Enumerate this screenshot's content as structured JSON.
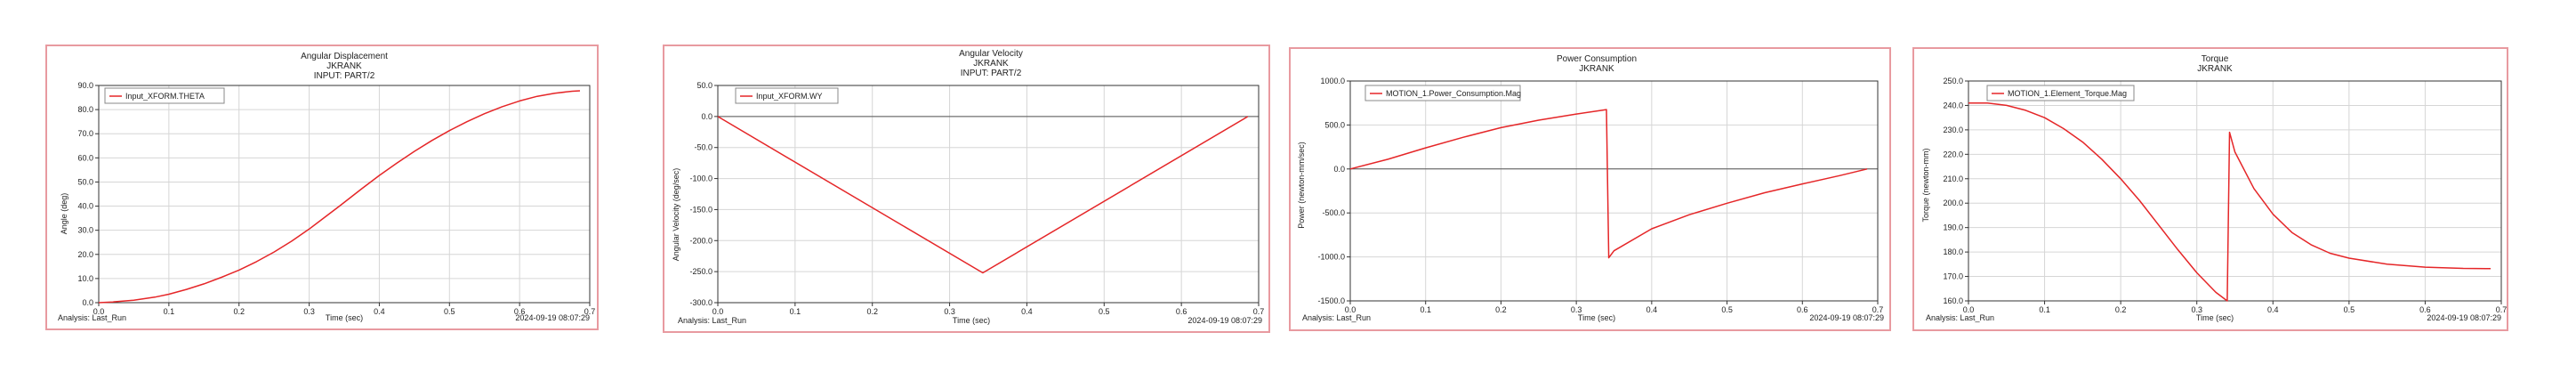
{
  "colors": {
    "series": "#e52628",
    "grid": "#d6d6d6",
    "frame": "#e89aa0",
    "axis": "#333333"
  },
  "charts": [
    {
      "title_lines": [
        "Angular Displacement",
        "JKRANK",
        "INPUT: PART/2"
      ],
      "ylabel": "Angle (deg)",
      "xlabel": "Time (sec)",
      "analysis": "Analysis:  Last_Run",
      "timestamp": "2024-09-19 08:07:29",
      "legend": "Input_XFORM.THETA",
      "xticks": [
        "0.0",
        "0.1",
        "0.2",
        "0.3",
        "0.4",
        "0.5",
        "0.6",
        "0.7"
      ],
      "yticks": [
        "0.0",
        "10.0",
        "20.0",
        "30.0",
        "40.0",
        "50.0",
        "60.0",
        "70.0",
        "80.0",
        "90.0"
      ]
    },
    {
      "title_lines": [
        "Angular Velocity",
        "JKRANK",
        "INPUT: PART/2"
      ],
      "ylabel": "Angular Velocity (deg/sec)",
      "xlabel": "Time (sec)",
      "analysis": "Analysis:  Last_Run",
      "timestamp": "2024-09-19 08:07:29",
      "legend": "Input_XFORM.WY",
      "xticks": [
        "0.0",
        "0.1",
        "0.2",
        "0.3",
        "0.4",
        "0.5",
        "0.6",
        "0.7"
      ],
      "yticks": [
        "-300.0",
        "-250.0",
        "-200.0",
        "-150.0",
        "-100.0",
        "-50.0",
        "0.0",
        "50.0"
      ]
    },
    {
      "title_lines": [
        "Power Consumption",
        "JKRANK"
      ],
      "ylabel": "Power (newton-mm/sec)",
      "xlabel": "Time (sec)",
      "analysis": "Analysis:  Last_Run",
      "timestamp": "2024-09-19 08:07:29",
      "legend": "MOTION_1.Power_Consumption.Mag",
      "xticks": [
        "0.0",
        "0.1",
        "0.2",
        "0.3",
        "0.4",
        "0.5",
        "0.6",
        "0.7"
      ],
      "yticks": [
        "-1500.0",
        "-1000.0",
        "-500.0",
        "0.0",
        "500.0",
        "1000.0"
      ]
    },
    {
      "title_lines": [
        "Torque",
        "JKRANK"
      ],
      "ylabel": "Torque (newton-mm)",
      "xlabel": "Time (sec)",
      "analysis": "Analysis:  Last_Run",
      "timestamp": "2024-09-19 08:07:29",
      "legend": "MOTION_1.Element_Torque.Mag",
      "xticks": [
        "0.0",
        "0.1",
        "0.2",
        "0.3",
        "0.4",
        "0.5",
        "0.6",
        "0.7"
      ],
      "yticks": [
        "160.0",
        "170.0",
        "180.0",
        "190.0",
        "200.0",
        "210.0",
        "220.0",
        "230.0",
        "240.0",
        "250.0"
      ]
    }
  ],
  "chart_data": [
    {
      "type": "line",
      "title": "Angular Displacement",
      "xlabel": "Time (sec)",
      "ylabel": "Angle (deg)",
      "xlim": [
        0.0,
        0.7
      ],
      "ylim": [
        0.0,
        90.0
      ],
      "grid": true,
      "legend_position": "top-left",
      "series": [
        {
          "name": "Input_XFORM.THETA",
          "x": [
            0.0,
            0.02,
            0.05,
            0.08,
            0.1,
            0.125,
            0.15,
            0.175,
            0.2,
            0.225,
            0.25,
            0.275,
            0.3,
            0.325,
            0.343,
            0.375,
            0.4,
            0.425,
            0.45,
            0.475,
            0.5,
            0.525,
            0.55,
            0.575,
            0.6,
            0.625,
            0.65,
            0.675,
            0.686
          ],
          "y": [
            0.0,
            0.3,
            1.0,
            2.3,
            3.5,
            5.5,
            7.8,
            10.5,
            13.5,
            17.0,
            21.0,
            25.5,
            30.5,
            36.0,
            40.0,
            47.2,
            52.7,
            57.8,
            62.7,
            67.2,
            71.3,
            75.0,
            78.3,
            81.2,
            83.6,
            85.5,
            86.8,
            87.6,
            87.8
          ]
        }
      ]
    },
    {
      "type": "line",
      "title": "Angular Velocity",
      "xlabel": "Time (sec)",
      "ylabel": "Angular Velocity (deg/sec)",
      "xlim": [
        0.0,
        0.7
      ],
      "ylim": [
        -300.0,
        50.0
      ],
      "grid": true,
      "legend_position": "top-left",
      "series": [
        {
          "name": "Input_XFORM.WY",
          "x": [
            0.0,
            0.343,
            0.686
          ],
          "y": [
            0.0,
            -252.0,
            0.0
          ]
        }
      ]
    },
    {
      "type": "line",
      "title": "Power Consumption",
      "xlabel": "Time (sec)",
      "ylabel": "Power (newton-mm/sec)",
      "xlim": [
        0.0,
        0.7
      ],
      "ylim": [
        -1500.0,
        1000.0
      ],
      "grid": true,
      "legend_position": "top-left",
      "series": [
        {
          "name": "MOTION_1.Power_Consumption.Mag",
          "x": [
            0.0,
            0.05,
            0.1,
            0.15,
            0.2,
            0.25,
            0.3,
            0.34,
            0.343,
            0.35,
            0.4,
            0.45,
            0.5,
            0.55,
            0.6,
            0.65,
            0.686
          ],
          "y": [
            0.0,
            110.0,
            240.0,
            360.0,
            470.0,
            555.0,
            625.0,
            675.0,
            -1010.0,
            -930.0,
            -680.0,
            -520.0,
            -390.0,
            -270.0,
            -170.0,
            -75.0,
            0.0
          ]
        }
      ]
    },
    {
      "type": "line",
      "title": "Torque",
      "xlabel": "Time (sec)",
      "ylabel": "Torque (newton-mm)",
      "xlim": [
        0.0,
        0.7
      ],
      "ylim": [
        160.0,
        250.0
      ],
      "grid": true,
      "legend_position": "top-left",
      "series": [
        {
          "name": "MOTION_1.Element_Torque.Mag",
          "x": [
            0.0,
            0.025,
            0.05,
            0.075,
            0.1,
            0.125,
            0.15,
            0.175,
            0.2,
            0.225,
            0.25,
            0.275,
            0.3,
            0.325,
            0.34,
            0.343,
            0.35,
            0.375,
            0.4,
            0.425,
            0.45,
            0.475,
            0.5,
            0.55,
            0.6,
            0.65,
            0.686
          ],
          "y": [
            241.0,
            241.0,
            240.0,
            238.0,
            235.0,
            230.5,
            225.0,
            218.0,
            210.0,
            201.0,
            191.0,
            181.0,
            171.5,
            163.5,
            160.0,
            229.0,
            221.0,
            206.0,
            195.5,
            188.0,
            183.0,
            179.5,
            177.5,
            175.0,
            173.8,
            173.3,
            173.2
          ]
        }
      ]
    }
  ]
}
